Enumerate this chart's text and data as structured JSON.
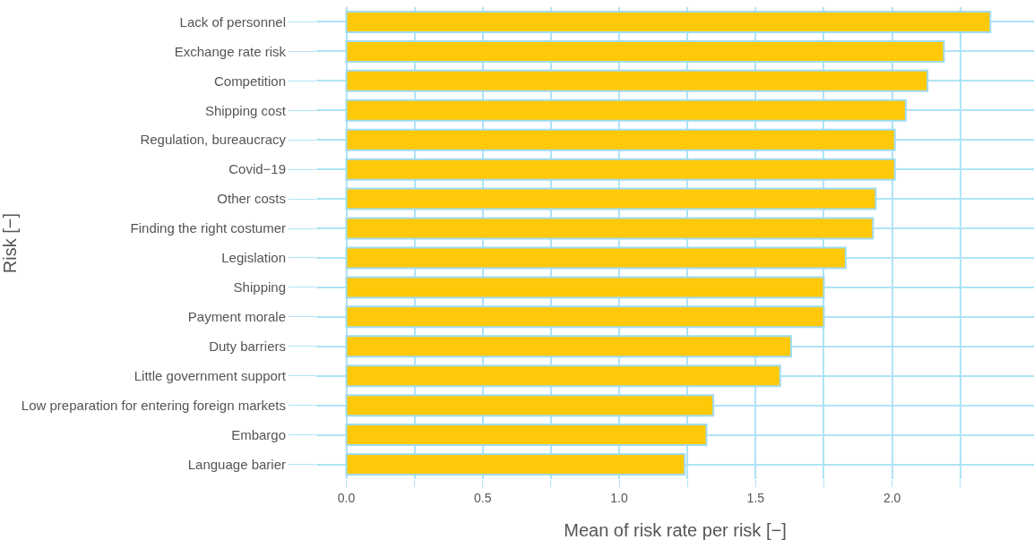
{
  "chart_data": {
    "type": "bar",
    "orientation": "horizontal",
    "xlabel": "Mean of risk rate per risk [−]",
    "ylabel": "Risk [−]",
    "categories": [
      "Lack of personnel",
      "Exchange rate risk",
      "Competition",
      "Shipping cost",
      "Regulation, bureaucracy",
      "Covid−19",
      "Other costs",
      "Finding the right costumer",
      "Legislation",
      "Shipping",
      "Payment morale",
      "Duty barriers",
      "Little government support",
      "Low preparation for entering foreign markets",
      "Embargo",
      "Language barier"
    ],
    "values": [
      2.36,
      2.19,
      2.13,
      2.05,
      2.01,
      2.01,
      1.94,
      1.93,
      1.83,
      1.75,
      1.75,
      1.63,
      1.59,
      1.345,
      1.32,
      1.24
    ],
    "color": "#ffc90a",
    "xlim": [
      -0.11,
      2.52
    ],
    "xticks": [
      {
        "value": 0,
        "label": "0.0"
      },
      {
        "value": 0.25,
        "label": null
      },
      {
        "value": 0.5,
        "label": "0.5"
      },
      {
        "value": 0.75,
        "label": null
      },
      {
        "value": 1,
        "label": "1.0"
      },
      {
        "value": 1.25,
        "label": null
      },
      {
        "value": 1.5,
        "label": "1.5"
      },
      {
        "value": 1.75,
        "label": null
      },
      {
        "value": 2,
        "label": "2.0"
      },
      {
        "value": 2.25,
        "label": null
      }
    ],
    "grid": true,
    "legend": false
  }
}
